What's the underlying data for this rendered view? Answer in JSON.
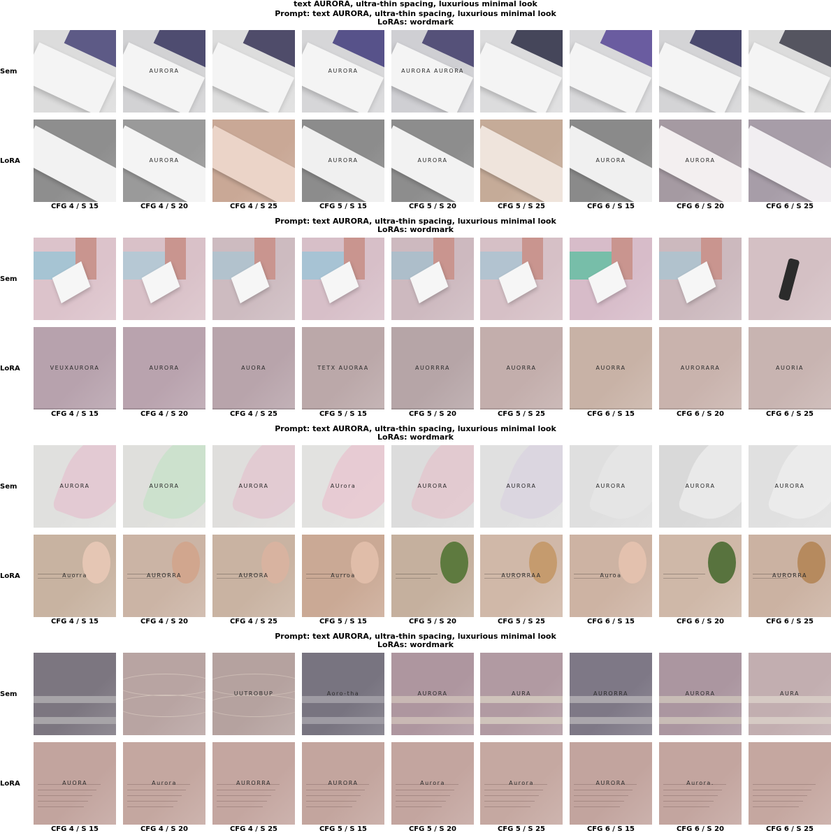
{
  "figure_title": "text AURORA, ultra-thin spacing, luxurious minimal look",
  "columns": [
    "CFG 4 / S 15",
    "CFG 4 / S 20",
    "CFG 4 / S 25",
    "CFG 5 / S 15",
    "CFG 5 / S 20",
    "CFG 5 / S 25",
    "CFG 6 / S 15",
    "CFG 6 / S 20",
    "CFG 6 / S 25"
  ],
  "row_labels": {
    "sem": "Sem",
    "lora": "LoRA"
  },
  "blocks": [
    {
      "prompt": "Prompt: text AURORA, ultra-thin spacing, luxurious minimal look",
      "loras": "LoRAs: wordmark",
      "sem": [
        {
          "bg": "#dcdcdc",
          "accent": "#5d5a86",
          "style": "box",
          "text": ""
        },
        {
          "bg": "#d2d2d4",
          "accent": "#4e4c70",
          "style": "box",
          "text": "AURORA"
        },
        {
          "bg": "#dddddd",
          "accent": "#4f4c6a",
          "style": "box",
          "text": ""
        },
        {
          "bg": "#d6d6d8",
          "accent": "#57528a",
          "style": "box",
          "text": "AURORA"
        },
        {
          "bg": "#cfcfd3",
          "accent": "#555179",
          "style": "box",
          "text": "AURORA AURORA"
        },
        {
          "bg": "#dcdcdd",
          "accent": "#45465a",
          "style": "box",
          "text": ""
        },
        {
          "bg": "#d8d8da",
          "accent": "#6a5ca0",
          "style": "box",
          "text": ""
        },
        {
          "bg": "#d4d4d6",
          "accent": "#4b4a6e",
          "style": "box",
          "text": ""
        },
        {
          "bg": "#dcdcdc",
          "accent": "#555560",
          "style": "box",
          "text": ""
        }
      ],
      "lora": [
        {
          "bg": "#8e8e8e",
          "accent": "#f2f2f2",
          "style": "sleeve",
          "text": ""
        },
        {
          "bg": "#9a9a9a",
          "accent": "#f4f4f4",
          "style": "sleeve",
          "text": "AURORA"
        },
        {
          "bg": "#c9a896",
          "accent": "#ebd4c8",
          "style": "sleeve",
          "text": ""
        },
        {
          "bg": "#8c8c8c",
          "accent": "#f0f0f0",
          "style": "sleeve",
          "text": "AURORA"
        },
        {
          "bg": "#8d8d8d",
          "accent": "#f2f2f2",
          "style": "sleeve",
          "text": "AURORA"
        },
        {
          "bg": "#c5ab98",
          "accent": "#efe4dc",
          "style": "sleeve",
          "text": ""
        },
        {
          "bg": "#8a8a8a",
          "accent": "#f0f0f0",
          "style": "sleeve",
          "text": "AURORA"
        },
        {
          "bg": "#a59aa2",
          "accent": "#f3eff0",
          "style": "sleeve",
          "text": "AURORA"
        },
        {
          "bg": "#a79da8",
          "accent": "#f1eef1",
          "style": "sleeve",
          "text": ""
        }
      ]
    },
    {
      "prompt": "Prompt: text AURORA, ultra-thin spacing, luxurious minimal look",
      "loras": "LoRAs: wordmark",
      "sem": [
        {
          "bg": "#dcc3cb",
          "accent": "#8fc4d6",
          "style": "card",
          "text": ""
        },
        {
          "bg": "#d9c1c8",
          "accent": "#a7cbd9",
          "style": "card",
          "text": ""
        },
        {
          "bg": "#cdbbc0",
          "accent": "#a6c4d3",
          "style": "card",
          "text": ""
        },
        {
          "bg": "#d7bfc8",
          "accent": "#93c5d8",
          "style": "card",
          "text": ""
        },
        {
          "bg": "#cdb9bf",
          "accent": "#9fc0cf",
          "style": "card",
          "text": ""
        },
        {
          "bg": "#d6c0c6",
          "accent": "#a3c5d4",
          "style": "card",
          "text": ""
        },
        {
          "bg": "#d7bcc9",
          "accent": "#4fbf9b",
          "style": "card",
          "text": ""
        },
        {
          "bg": "#ccb9be",
          "accent": "#a5c6d3",
          "style": "card",
          "text": ""
        },
        {
          "bg": "#d4c0c4",
          "accent": "#2b2b2b",
          "style": "bottle",
          "text": ""
        }
      ],
      "lora": [
        {
          "bg": "#b7a2ad",
          "accent": "#333",
          "style": "flat",
          "text": "VEUXAURORA"
        },
        {
          "bg": "#b9a3ae",
          "accent": "#333",
          "style": "flat",
          "text": "AURORA"
        },
        {
          "bg": "#b8a4ab",
          "accent": "#333",
          "style": "flat",
          "text": "AUORA"
        },
        {
          "bg": "#bba8a9",
          "accent": "#333",
          "style": "flat",
          "text": "TETX AUORAA"
        },
        {
          "bg": "#b6a5a7",
          "accent": "#333",
          "style": "flat",
          "text": "AUORRRA"
        },
        {
          "bg": "#c3aeac",
          "accent": "#333",
          "style": "flat",
          "text": "AUORRA"
        },
        {
          "bg": "#c8b2a6",
          "accent": "#333",
          "style": "flat",
          "text": "AUORRA"
        },
        {
          "bg": "#c9b3ad",
          "accent": "#333",
          "style": "flat",
          "text": "AURORARA"
        },
        {
          "bg": "#c8b4b1",
          "accent": "#555",
          "style": "flat",
          "text": "AUORIA"
        }
      ]
    },
    {
      "prompt": "Prompt: text AURORA, ultra-thin spacing, luxurious minimal look",
      "loras": "LoRAs: wordmark",
      "sem": [
        {
          "bg": "#e0e0de",
          "accent": "#e4c4cf",
          "style": "feather",
          "text": "AURORA"
        },
        {
          "bg": "#dfdfdc",
          "accent": "#c7e1c9",
          "style": "feather",
          "text": "AURORA"
        },
        {
          "bg": "#dfdedc",
          "accent": "#e2c6cf",
          "style": "feather",
          "text": "AURORA"
        },
        {
          "bg": "#e2e2e0",
          "accent": "#e8c5d0",
          "style": "feather",
          "text": "AUrora"
        },
        {
          "bg": "#dcdcdc",
          "accent": "#e3c5cd",
          "style": "feather",
          "text": "AURORA"
        },
        {
          "bg": "#e0e0e0",
          "accent": "#d9d3e0",
          "style": "feather",
          "text": "AURORA"
        },
        {
          "bg": "#dfdfdf",
          "accent": "#e6e6e6",
          "style": "feather",
          "text": "AURORA"
        },
        {
          "bg": "#d9d9d9",
          "accent": "#ececec",
          "style": "feather",
          "text": "AURORA"
        },
        {
          "bg": "#e0e0e0",
          "accent": "#eeeeee",
          "style": "feather",
          "text": "AURORA"
        }
      ],
      "lora": [
        {
          "bg": "#c8b3a1",
          "accent": "#e5c6b4",
          "style": "portrait",
          "text": "Auorra"
        },
        {
          "bg": "#cbb4a5",
          "accent": "#d1a68e",
          "style": "portrait",
          "text": "AURORRA"
        },
        {
          "bg": "#c9b3a2",
          "accent": "#d8b3a0",
          "style": "portrait",
          "text": "AURORA"
        },
        {
          "bg": "#caa995",
          "accent": "#e0bda9",
          "style": "portrait",
          "text": "Aurroa"
        },
        {
          "bg": "#c5b09e",
          "accent": "#5e7a3f",
          "style": "portrait",
          "text": ""
        },
        {
          "bg": "#d0b8a8",
          "accent": "#c59b6e",
          "style": "portrait",
          "text": "AURORRAA"
        },
        {
          "bg": "#cdb3a3",
          "accent": "#e3c1ae",
          "style": "portrait",
          "text": "Auroa"
        },
        {
          "bg": "#cfb8a8",
          "accent": "#58733e",
          "style": "portrait",
          "text": ""
        },
        {
          "bg": "#cbb2a2",
          "accent": "#b68a5e",
          "style": "portrait",
          "text": "AURORRA"
        }
      ]
    },
    {
      "prompt": "Prompt: text AURORA, ultra-thin spacing, luxurious minimal look",
      "loras": "LoRAs: wordmark",
      "sem": [
        {
          "bg": "#7c7680",
          "accent": "#a7a4a8",
          "style": "banner",
          "text": ""
        },
        {
          "bg": "#b8a4a2",
          "accent": "#d1c1b9",
          "style": "wave",
          "text": ""
        },
        {
          "bg": "#b5a29f",
          "accent": "#cdbdb5",
          "style": "wave",
          "text": "UUTROBUP"
        },
        {
          "bg": "#787480",
          "accent": "#9e9ba3",
          "style": "banner",
          "text": "Aoro-tha"
        },
        {
          "bg": "#ae969f",
          "accent": "#c9b8b4",
          "style": "banner",
          "text": "AURORA"
        },
        {
          "bg": "#b19aa2",
          "accent": "#cfc3bb",
          "style": "banner",
          "text": "AURA"
        },
        {
          "bg": "#7e7886",
          "accent": "#aaa6ac",
          "style": "banner",
          "text": "AURORRA"
        },
        {
          "bg": "#ab96a0",
          "accent": "#c8bcb6",
          "style": "banner",
          "text": "AURORA"
        },
        {
          "bg": "#c2aeb0",
          "accent": "#d6cac4",
          "style": "banner",
          "text": "AURA"
        }
      ],
      "lora": [
        {
          "bg": "#c2a49e",
          "accent": "#8a6e69",
          "style": "doc",
          "text": "AUORA"
        },
        {
          "bg": "#c4a7a0",
          "accent": "#8a6e69",
          "style": "doc",
          "text": "Aurora"
        },
        {
          "bg": "#c4a6a0",
          "accent": "#8a6e69",
          "style": "doc",
          "text": "AURORRA"
        },
        {
          "bg": "#c3a59e",
          "accent": "#8a6e69",
          "style": "doc",
          "text": "AURORA"
        },
        {
          "bg": "#c3a59f",
          "accent": "#8a6e69",
          "style": "doc",
          "text": "Aurora"
        },
        {
          "bg": "#c5a8a1",
          "accent": "#8a6e69",
          "style": "doc",
          "text": "Aurora"
        },
        {
          "bg": "#c2a49e",
          "accent": "#8a6e69",
          "style": "doc",
          "text": "AURORA"
        },
        {
          "bg": "#c3a59f",
          "accent": "#8a6e69",
          "style": "doc",
          "text": "Aurora."
        },
        {
          "bg": "#c5a7a0",
          "accent": "#8a6e69",
          "style": "doc",
          "text": ""
        }
      ]
    }
  ]
}
